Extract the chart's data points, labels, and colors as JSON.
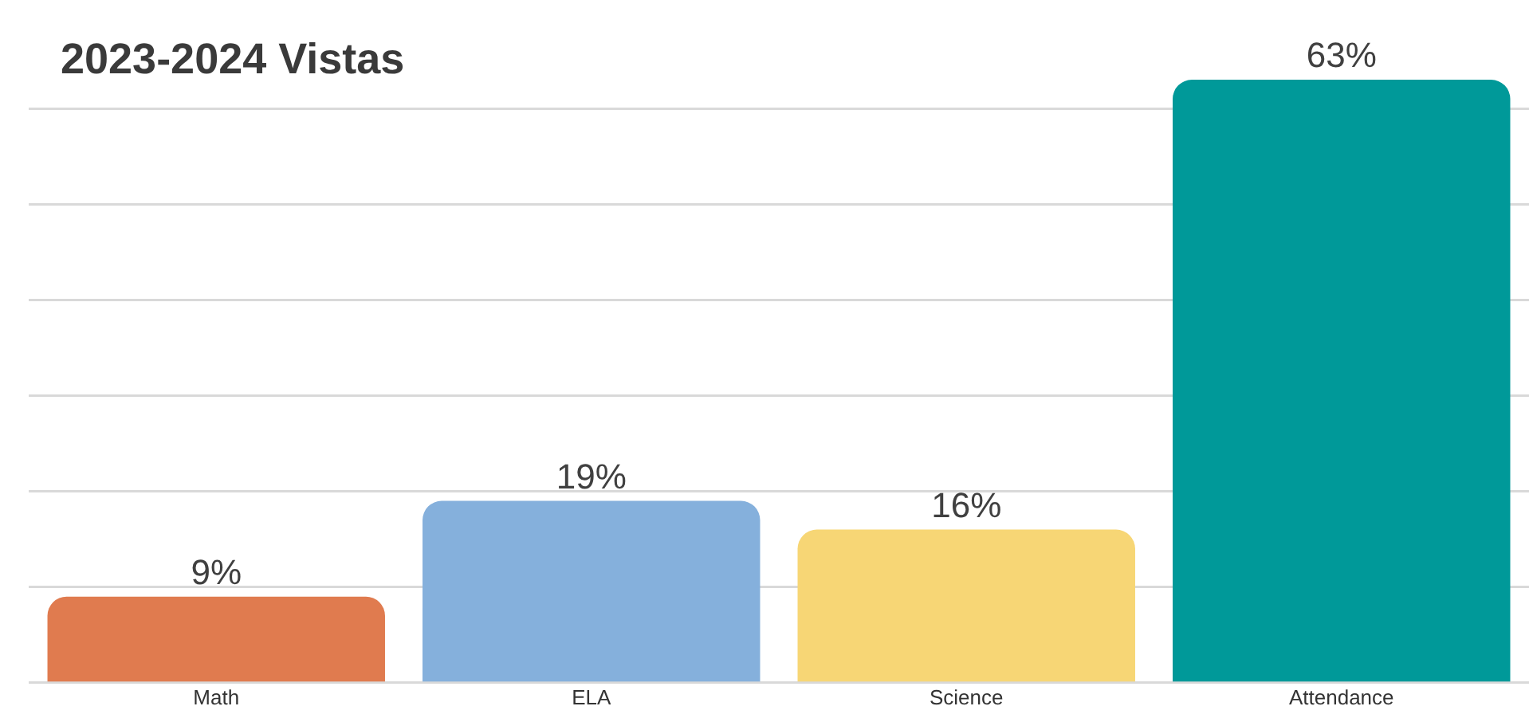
{
  "chart_data": {
    "type": "bar",
    "title": "2023-2024 Vistas",
    "categories": [
      "Math",
      "ELA",
      "Science",
      "Attendance"
    ],
    "values": [
      9,
      19,
      16,
      63
    ],
    "colors": [
      "#e07b4f",
      "#85b0dc",
      "#f7d675",
      "#009999"
    ],
    "value_labels": [
      "9%",
      "19%",
      "16%",
      "63%"
    ],
    "yticks": [
      {
        "value": 0,
        "label": null
      },
      {
        "value": 10,
        "label": null
      },
      {
        "value": 20,
        "label": null
      },
      {
        "value": 30,
        "label": null
      },
      {
        "value": 40,
        "label": null
      },
      {
        "value": 50,
        "label": null
      },
      {
        "value": 60,
        "label": null
      }
    ],
    "grid": "y",
    "tick_labels": "x",
    "legend": false
  }
}
